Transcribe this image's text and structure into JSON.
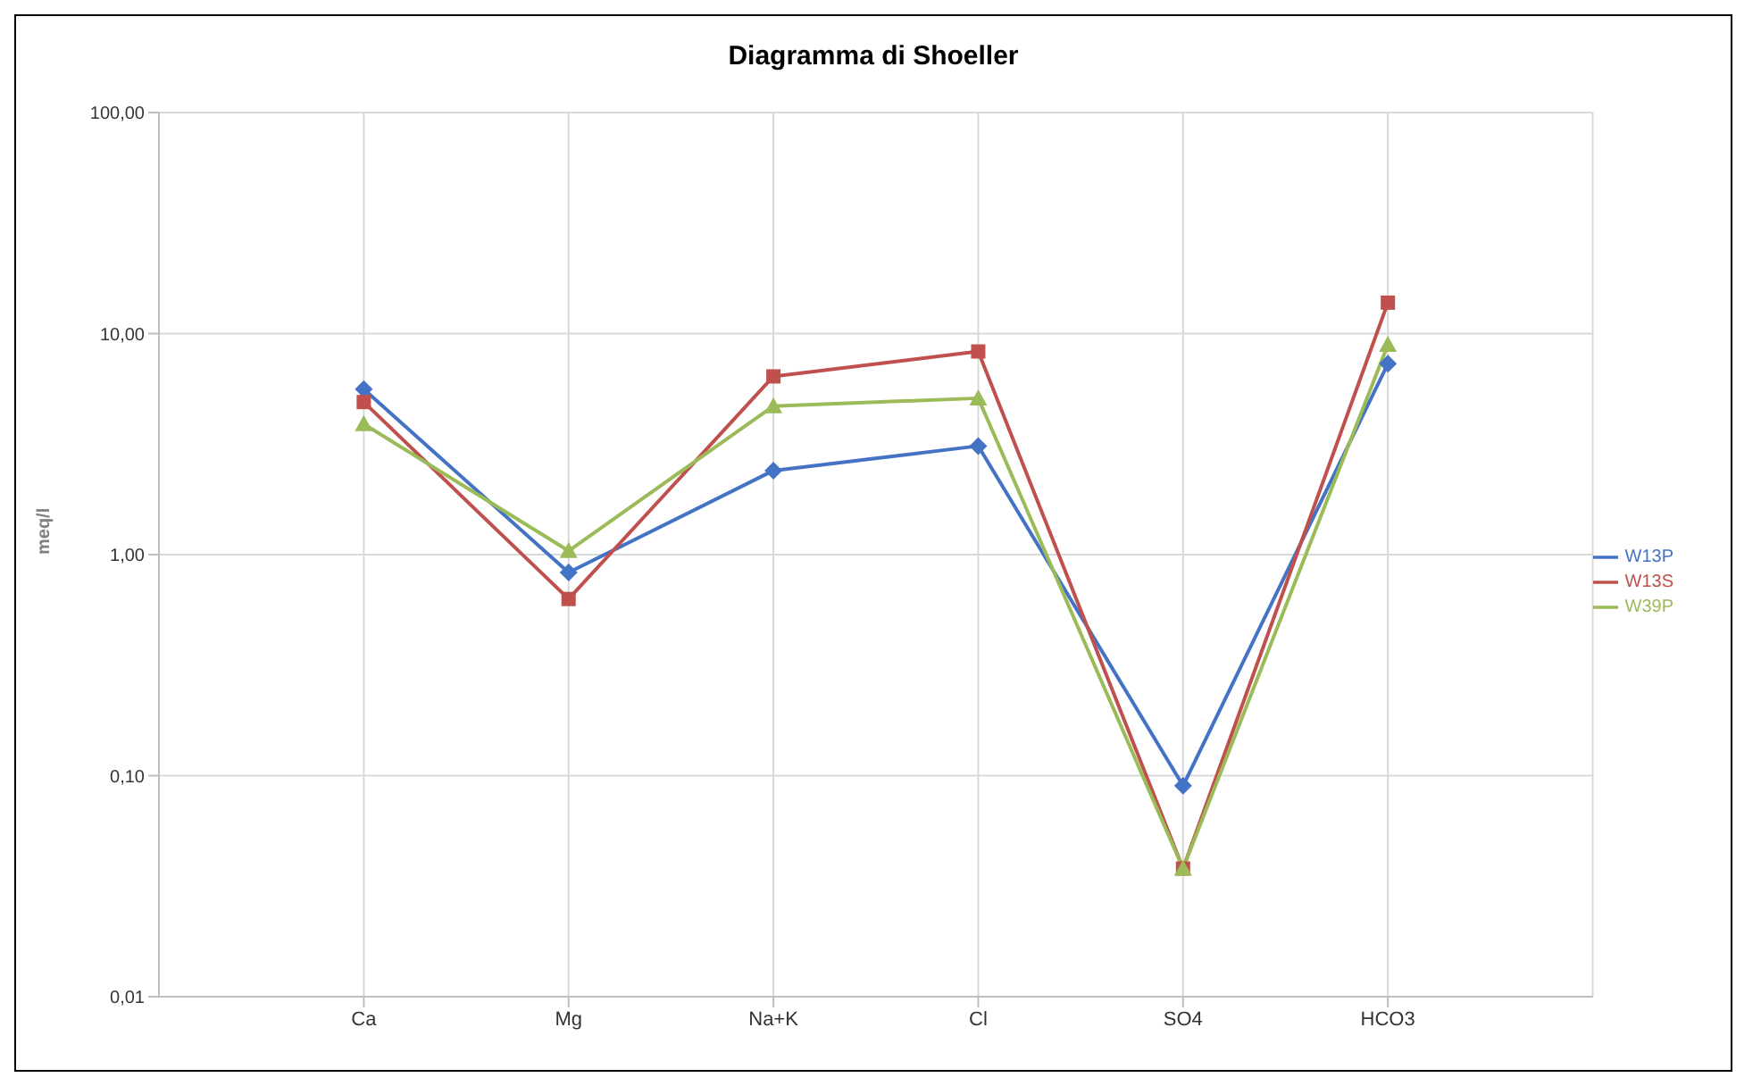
{
  "chart_data": {
    "type": "line",
    "title": "Diagramma di Shoeller",
    "ylabel": "meq/l",
    "categories": [
      "Ca",
      "Mg",
      "Na+K",
      "Cl",
      "SO4",
      "HCO3"
    ],
    "series": [
      {
        "name": "W13P",
        "color": "#4472c4",
        "marker": "diamond",
        "values": [
          5.6,
          0.83,
          2.4,
          3.1,
          0.09,
          7.3
        ]
      },
      {
        "name": "W13S",
        "color": "#c0504d",
        "marker": "square",
        "values": [
          4.9,
          0.63,
          6.4,
          8.3,
          0.038,
          13.8
        ]
      },
      {
        "name": "W39P",
        "color": "#9bbb59",
        "marker": "triangle",
        "values": [
          3.9,
          1.04,
          4.7,
          5.1,
          0.038,
          8.9
        ]
      }
    ],
    "log": "y",
    "ylim": [
      0.01,
      100
    ],
    "yticks": [
      {
        "value": 0.01,
        "label": "0,01"
      },
      {
        "value": 0.1,
        "label": "0,10"
      },
      {
        "value": 1,
        "label": "1,00"
      },
      {
        "value": 10,
        "label": "10,00"
      },
      {
        "value": 100,
        "label": "100,00"
      }
    ],
    "grid": true,
    "legend": "right",
    "line_style": "solid"
  }
}
